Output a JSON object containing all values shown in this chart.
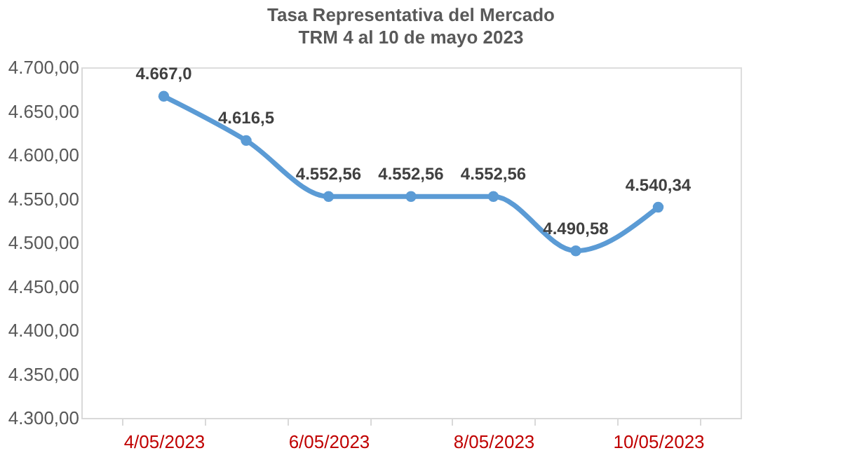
{
  "chart_data": {
    "type": "line",
    "title": "Tasa Representativa del Mercado",
    "subtitle": "TRM  4 al 10 de mayo 2023",
    "categories": [
      "4/05/2023",
      null,
      "6/05/2023",
      null,
      "8/05/2023",
      null,
      "10/05/2023"
    ],
    "series": [
      {
        "color": "#5b9bd5",
        "values": [
          4667.0,
          4616.5,
          4552.56,
          4552.56,
          4552.56,
          4490.58,
          4540.34
        ],
        "value_labels": [
          "4.667,0",
          "4.616,5",
          "4.552,56",
          "4.552,56",
          "4.552,56",
          "4.490,58",
          "4.540,34"
        ]
      }
    ],
    "ylim": [
      4300,
      4700
    ],
    "yticks": [
      {
        "value": 4300,
        "label": "4.300,00"
      },
      {
        "value": 4350,
        "label": "4.350,00"
      },
      {
        "value": 4400,
        "label": "4.400,00"
      },
      {
        "value": 4450,
        "label": "4.450,00"
      },
      {
        "value": 4500,
        "label": "4.500,00"
      },
      {
        "value": 4550,
        "label": "4.550,00"
      },
      {
        "value": 4600,
        "label": "4.600,00"
      },
      {
        "value": 4650,
        "label": "4.650,00"
      },
      {
        "value": 4700,
        "label": "4.700,00"
      }
    ],
    "grid": false,
    "marker": "circle",
    "line_style": "solid"
  }
}
